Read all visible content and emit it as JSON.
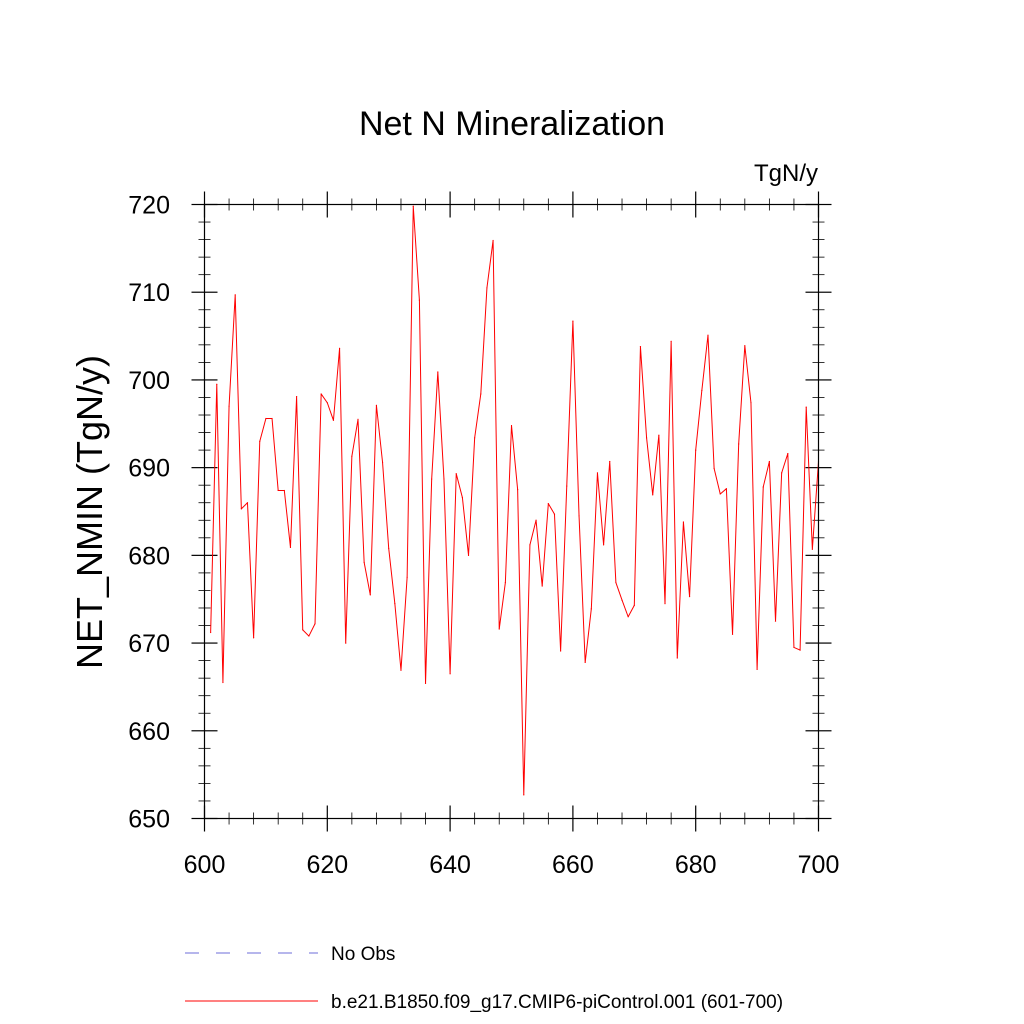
{
  "chart_data": {
    "type": "line",
    "title": "Net N Mineralization",
    "units_label": "TgN/y",
    "xlabel": "",
    "ylabel": "NET_NMIN  (TgN/y)",
    "xlim": [
      600,
      700
    ],
    "ylim": [
      650,
      720
    ],
    "x_major_ticks": [
      600,
      620,
      640,
      660,
      680,
      700
    ],
    "x_tick_labels": [
      "600",
      "620",
      "640",
      "660",
      "680",
      "700"
    ],
    "y_major_ticks": [
      650,
      660,
      670,
      680,
      690,
      700,
      710,
      720
    ],
    "y_tick_labels": [
      "650",
      "660",
      "670",
      "680",
      "690",
      "700",
      "710",
      "720"
    ],
    "grid": false,
    "legend": {
      "placement": "bottom-left",
      "entries": [
        {
          "label": "No Obs",
          "color": "#8a8ae0",
          "style": "dashed"
        },
        {
          "label": "b.e21.B1850.f09_g17.CMIP6-piControl.001 (601-700)",
          "color": "#ff0000",
          "style": "solid"
        }
      ]
    },
    "series": [
      {
        "name": "b.e21.B1850.f09_g17.CMIP6-piControl.001 (601-700)",
        "color": "#ff0000",
        "x": [
          601,
          602,
          603,
          604,
          605,
          606,
          607,
          608,
          609,
          610,
          611,
          612,
          613,
          614,
          615,
          616,
          617,
          618,
          619,
          620,
          621,
          622,
          623,
          624,
          625,
          626,
          627,
          628,
          629,
          630,
          631,
          632,
          633,
          634,
          635,
          636,
          637,
          638,
          639,
          640,
          641,
          642,
          643,
          644,
          645,
          646,
          647,
          648,
          649,
          650,
          651,
          652,
          653,
          654,
          655,
          656,
          657,
          658,
          659,
          660,
          661,
          662,
          663,
          664,
          665,
          666,
          667,
          668,
          669,
          670,
          671,
          672,
          673,
          674,
          675,
          676,
          677,
          678,
          679,
          680,
          681,
          682,
          683,
          684,
          685,
          686,
          687,
          688,
          689,
          690,
          691,
          692,
          693,
          694,
          695,
          696,
          697,
          698,
          699,
          700
        ],
        "values": [
          671.2,
          699.5,
          665.5,
          697.0,
          709.7,
          685.3,
          686.0,
          670.6,
          693.0,
          695.6,
          695.6,
          687.4,
          687.4,
          680.9,
          698.1,
          671.5,
          670.8,
          672.2,
          698.4,
          697.4,
          695.4,
          703.6,
          670.0,
          691.3,
          695.5,
          679.2,
          675.5,
          697.1,
          690.6,
          680.8,
          674.5,
          666.9,
          677.5,
          719.8,
          709.1,
          665.4,
          688.7,
          700.9,
          688.7,
          666.5,
          689.3,
          686.6,
          680.0,
          693.4,
          698.4,
          710.5,
          715.9,
          671.6,
          676.9,
          694.8,
          687.5,
          652.7,
          681.2,
          684.0,
          676.5,
          685.9,
          684.7,
          669.1,
          687.9,
          706.7,
          684.5,
          667.8,
          673.9,
          689.4,
          681.2,
          690.7,
          676.9,
          674.9,
          673.0,
          674.3,
          703.8,
          693.4,
          686.9,
          693.7,
          674.5,
          704.4,
          668.3,
          683.8,
          675.3,
          692.0,
          698.8,
          705.1,
          689.9,
          687.0,
          687.6,
          671.0,
          692.7,
          703.9,
          697.4,
          667.0,
          687.8,
          690.7,
          672.5,
          689.4,
          691.6,
          669.5,
          669.2,
          696.9,
          680.7,
          690.7
        ]
      }
    ]
  }
}
